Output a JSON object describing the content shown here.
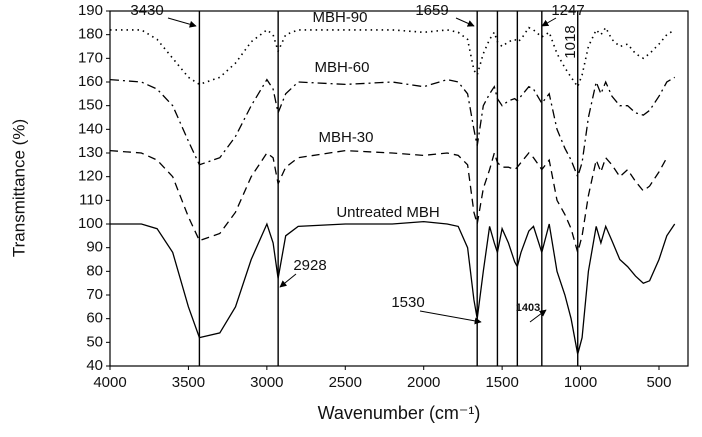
{
  "chart_data": {
    "type": "line",
    "x_label": "Wavenumber (cm⁻¹)",
    "y_label": "Transmittance (%)",
    "x": [
      4000,
      3800,
      3700,
      3600,
      3500,
      3430,
      3300,
      3200,
      3100,
      3000,
      2960,
      2928,
      2880,
      2800,
      2500,
      2200,
      2000,
      1850,
      1780,
      1720,
      1680,
      1659,
      1620,
      1580,
      1550,
      1530,
      1500,
      1460,
      1420,
      1403,
      1380,
      1330,
      1300,
      1247,
      1200,
      1150,
      1100,
      1060,
      1018,
      990,
      950,
      900,
      870,
      840,
      800,
      750,
      700,
      650,
      600,
      560,
      500,
      450,
      400
    ],
    "series": [
      {
        "name": "MBH-90",
        "color": "#000000",
        "dash": "dotted",
        "values": [
          182,
          182,
          178,
          170,
          162,
          159,
          162,
          168,
          177,
          182,
          180,
          173,
          180,
          182,
          182,
          182,
          181,
          182,
          181,
          178,
          165,
          163,
          172,
          178,
          181,
          177,
          175,
          177,
          178,
          177,
          178,
          183,
          182,
          179,
          181,
          172,
          166,
          162,
          158,
          163,
          175,
          182,
          180,
          183,
          178,
          175,
          176,
          172,
          170,
          172,
          176,
          180,
          182
        ]
      },
      {
        "name": "MBH-60",
        "color": "#000000",
        "dash": "dashdot",
        "values": [
          161,
          160,
          157,
          150,
          135,
          125,
          128,
          137,
          150,
          161,
          157,
          147,
          155,
          160,
          159,
          160,
          158,
          161,
          160,
          155,
          140,
          133,
          150,
          155,
          158,
          153,
          150,
          152,
          153,
          152,
          154,
          158,
          157,
          151,
          155,
          140,
          132,
          127,
          120,
          126,
          145,
          160,
          155,
          160,
          154,
          150,
          150,
          147,
          146,
          148,
          154,
          160,
          162
        ]
      },
      {
        "name": "MBH-30",
        "color": "#000000",
        "dash": "dashed",
        "values": [
          131,
          130,
          127,
          120,
          103,
          93,
          96,
          105,
          120,
          130,
          128,
          117,
          124,
          128,
          131,
          130,
          129,
          130,
          129,
          125,
          105,
          100,
          115,
          123,
          130,
          126,
          124,
          124,
          123,
          124,
          126,
          130,
          128,
          123,
          127,
          110,
          104,
          98,
          88,
          95,
          112,
          127,
          122,
          128,
          125,
          120,
          123,
          118,
          114,
          116,
          122,
          128,
          null
        ]
      },
      {
        "name": "Untreated MBH",
        "color": "#000000",
        "dash": "solid",
        "values": [
          100,
          100,
          98,
          88,
          65,
          52,
          54,
          65,
          85,
          100,
          92,
          77,
          95,
          99,
          100,
          100,
          101,
          100,
          99,
          90,
          68,
          60,
          80,
          99,
          92,
          88,
          98,
          92,
          84,
          82,
          88,
          97,
          99,
          88,
          100,
          80,
          70,
          60,
          45,
          52,
          80,
          99,
          92,
          99,
          93,
          85,
          82,
          78,
          75,
          76,
          85,
          95,
          100
        ]
      }
    ],
    "markers": [
      3430,
      2928,
      1659,
      1530,
      1403,
      1247,
      1018
    ],
    "xlim": [
      4000,
      315
    ],
    "xticks": [
      4000,
      3500,
      3000,
      2500,
      2000,
      1500,
      1000,
      500
    ],
    "ylim": [
      40,
      190
    ],
    "yticks": [
      40,
      50,
      60,
      70,
      80,
      90,
      100,
      110,
      120,
      130,
      140,
      150,
      160,
      170,
      180,
      190
    ]
  }
}
